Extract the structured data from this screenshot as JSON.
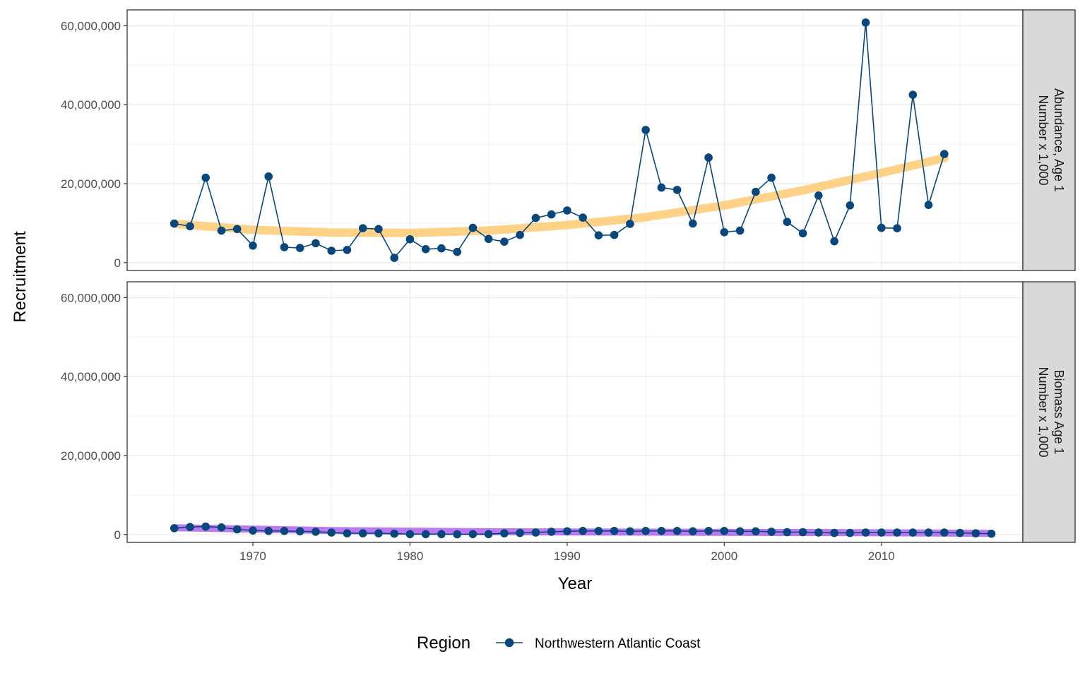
{
  "chart_data": {
    "type": "line",
    "xlabel": "Year",
    "ylabel": "Recruitment",
    "x_ticks": [
      1970,
      1980,
      1990,
      2000,
      2010
    ],
    "y_ticks": [
      {
        "value": 0,
        "label": "0"
      },
      {
        "value": 20000000,
        "label": "20,000,000"
      },
      {
        "value": 40000000,
        "label": "40,000,000"
      },
      {
        "value": 60000000,
        "label": "60,000,000"
      }
    ],
    "xlim": [
      1962,
      2019
    ],
    "ylim": [
      -2000000,
      64000000
    ],
    "grid": true,
    "legend": {
      "title": "Region",
      "placement": "bottom",
      "entries": [
        {
          "name": "Northwestern Atlantic Coast",
          "color": "#08477d"
        }
      ]
    },
    "panels": [
      {
        "strip_lines": [
          "Abundance, Age 1",
          "Number x 1,000"
        ],
        "trend_color": "#fdc35f",
        "x": [
          1965,
          1966,
          1967,
          1968,
          1969,
          1970,
          1971,
          1972,
          1973,
          1974,
          1975,
          1976,
          1977,
          1978,
          1979,
          1980,
          1981,
          1982,
          1983,
          1984,
          1985,
          1986,
          1987,
          1988,
          1989,
          1990,
          1991,
          1992,
          1993,
          1994,
          1995,
          1996,
          1997,
          1998,
          1999,
          2000,
          2001,
          2002,
          2003,
          2004,
          2005,
          2006,
          2007,
          2008,
          2009,
          2010,
          2011,
          2012,
          2013,
          2014
        ],
        "y": [
          9900000,
          9200000,
          21500000,
          8100000,
          8500000,
          4300000,
          21800000,
          3900000,
          3700000,
          4900000,
          3000000,
          3200000,
          8700000,
          8500000,
          1200000,
          5900000,
          3400000,
          3600000,
          2700000,
          8800000,
          6000000,
          5300000,
          7000000,
          11300000,
          12200000,
          13200000,
          11400000,
          6900000,
          7000000,
          9800000,
          33600000,
          19000000,
          18400000,
          9900000,
          26600000,
          7700000,
          8100000,
          17900000,
          21500000,
          10300000,
          7400000,
          17000000,
          5400000,
          14500000,
          60800000,
          8800000,
          8700000,
          42500000,
          14600000,
          27500000
        ],
        "trend_x": [
          1965,
          1970,
          1975,
          1980,
          1985,
          1990,
          1995,
          2000,
          2005,
          2010,
          2014
        ],
        "trend_y": [
          9800000,
          8300000,
          7600000,
          7500000,
          8100000,
          9500000,
          11500000,
          14500000,
          18300000,
          22700000,
          26500000
        ]
      },
      {
        "strip_lines": [
          "Biomass Age 1",
          "Number x 1,000"
        ],
        "trend_color": "#a040ee",
        "x": [
          1965,
          1966,
          1967,
          1968,
          1969,
          1970,
          1971,
          1972,
          1973,
          1974,
          1975,
          1976,
          1977,
          1978,
          1979,
          1980,
          1981,
          1982,
          1983,
          1984,
          1985,
          1986,
          1987,
          1988,
          1989,
          1990,
          1991,
          1992,
          1993,
          1994,
          1995,
          1996,
          1997,
          1998,
          1999,
          2000,
          2001,
          2002,
          2003,
          2004,
          2005,
          2006,
          2007,
          2008,
          2009,
          2010,
          2011,
          2012,
          2013,
          2014,
          2015,
          2016,
          2017
        ],
        "y": [
          1600000,
          1900000,
          2000000,
          1800000,
          1300000,
          1000000,
          900000,
          900000,
          800000,
          700000,
          500000,
          300000,
          300000,
          300000,
          200000,
          100000,
          100000,
          100000,
          50000,
          100000,
          100000,
          300000,
          400000,
          500000,
          700000,
          800000,
          900000,
          900000,
          900000,
          800000,
          900000,
          900000,
          900000,
          800000,
          900000,
          900000,
          800000,
          800000,
          700000,
          600000,
          600000,
          500000,
          400000,
          400000,
          500000,
          500000,
          500000,
          500000,
          500000,
          500000,
          400000,
          300000,
          200000
        ],
        "trend_x": [
          1965,
          1975,
          1985,
          1995,
          2005,
          2017
        ],
        "trend_y": [
          1700000,
          1000000,
          700000,
          600000,
          500000,
          300000
        ]
      }
    ]
  }
}
